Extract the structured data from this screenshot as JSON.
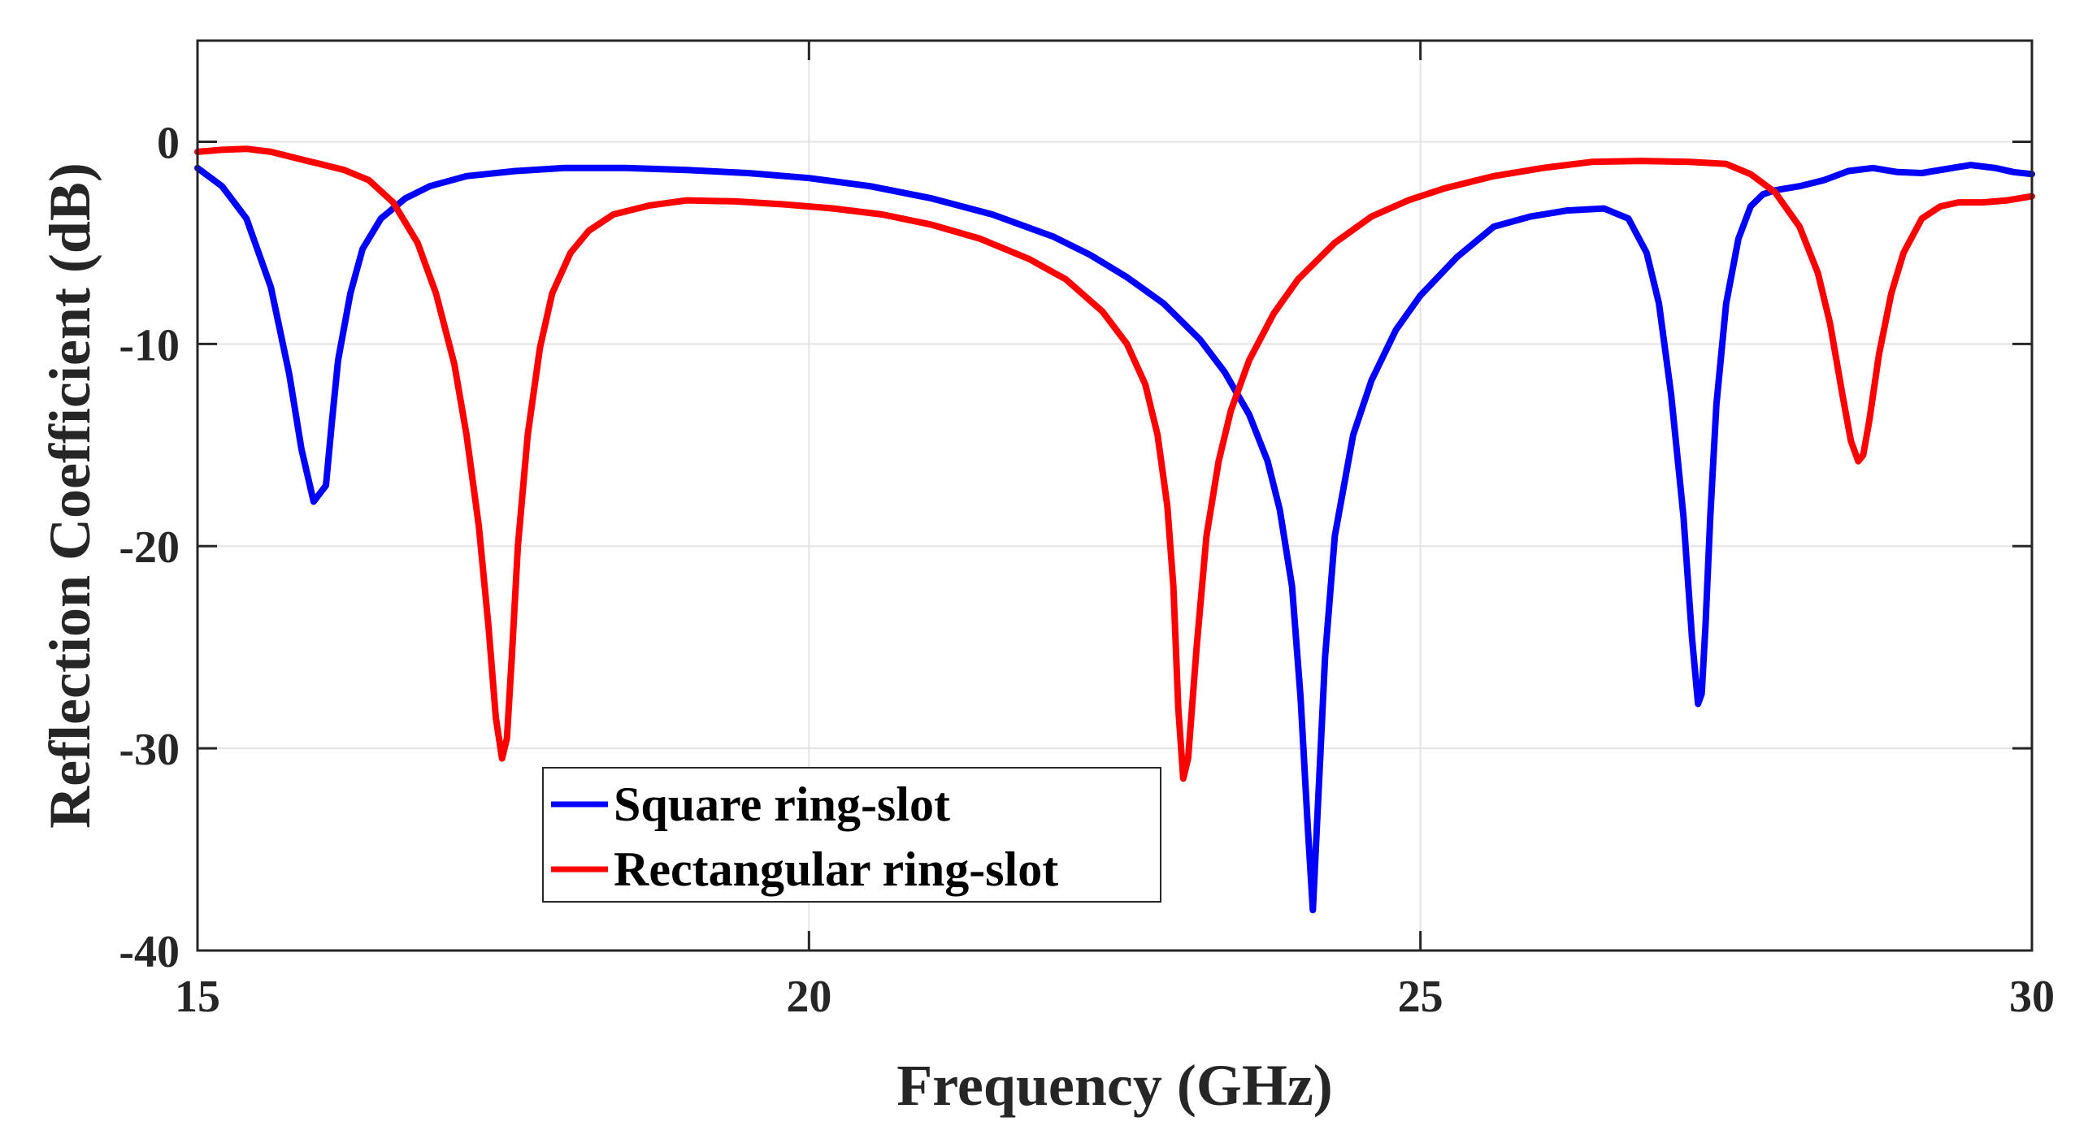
{
  "chart_data": {
    "type": "line",
    "title": "",
    "xlabel": "Frequency (GHz)",
    "ylabel": "Reflection Coefficient (dB)",
    "xlim": [
      15,
      30
    ],
    "ylim": [
      -40,
      5
    ],
    "xticks": [
      15,
      20,
      25,
      30
    ],
    "yticks": [
      0,
      -10,
      -20,
      -30,
      -40
    ],
    "xtick_labels": [
      "15",
      "20",
      "25",
      "30"
    ],
    "ytick_labels": [
      "0",
      "-10",
      "-20",
      "-30",
      "-40"
    ],
    "grid": true,
    "legend_position": "lower-left-center",
    "series": [
      {
        "name": "Square ring-slot",
        "color": "#0000ff",
        "x": [
          15.0,
          15.2,
          15.4,
          15.6,
          15.75,
          15.85,
          15.95,
          16.05,
          16.1,
          16.15,
          16.25,
          16.35,
          16.5,
          16.7,
          16.9,
          17.2,
          17.6,
          18.0,
          18.5,
          19.0,
          19.5,
          20.0,
          20.5,
          21.0,
          21.5,
          22.0,
          22.3,
          22.6,
          22.9,
          23.2,
          23.4,
          23.6,
          23.75,
          23.85,
          23.95,
          24.02,
          24.08,
          24.12,
          24.16,
          24.22,
          24.3,
          24.45,
          24.6,
          24.8,
          25.0,
          25.3,
          25.6,
          25.9,
          26.2,
          26.5,
          26.7,
          26.85,
          26.95,
          27.05,
          27.15,
          27.22,
          27.27,
          27.3,
          27.33,
          27.37,
          27.42,
          27.5,
          27.6,
          27.7,
          27.8,
          27.9,
          28.0,
          28.1,
          28.3,
          28.5,
          28.7,
          28.9,
          29.1,
          29.3,
          29.5,
          29.7,
          29.85,
          30.0
        ],
        "y": [
          -1.3,
          -2.2,
          -3.8,
          -7.2,
          -11.5,
          -15.2,
          -17.8,
          -17.0,
          -13.8,
          -10.8,
          -7.5,
          -5.3,
          -3.8,
          -2.8,
          -2.2,
          -1.7,
          -1.45,
          -1.3,
          -1.3,
          -1.4,
          -1.55,
          -1.8,
          -2.2,
          -2.8,
          -3.6,
          -4.7,
          -5.6,
          -6.7,
          -8.0,
          -9.8,
          -11.4,
          -13.5,
          -15.8,
          -18.2,
          -22.0,
          -27.5,
          -34.0,
          -38.0,
          -33.0,
          -25.5,
          -19.5,
          -14.5,
          -11.8,
          -9.3,
          -7.6,
          -5.7,
          -4.2,
          -3.7,
          -3.4,
          -3.3,
          -3.8,
          -5.5,
          -8.0,
          -12.5,
          -18.5,
          -24.5,
          -27.8,
          -27.3,
          -24.0,
          -18.5,
          -13.0,
          -8.0,
          -4.8,
          -3.2,
          -2.6,
          -2.4,
          -2.3,
          -2.2,
          -1.9,
          -1.45,
          -1.3,
          -1.5,
          -1.55,
          -1.35,
          -1.15,
          -1.3,
          -1.5,
          -1.6
        ]
      },
      {
        "name": "Rectangular ring-slot",
        "color": "#ff0000",
        "x": [
          15.0,
          15.2,
          15.4,
          15.6,
          15.8,
          16.0,
          16.2,
          16.4,
          16.6,
          16.8,
          16.95,
          17.1,
          17.2,
          17.3,
          17.38,
          17.44,
          17.49,
          17.53,
          17.57,
          17.62,
          17.7,
          17.8,
          17.9,
          18.05,
          18.2,
          18.4,
          18.7,
          19.0,
          19.4,
          19.8,
          20.2,
          20.6,
          21.0,
          21.4,
          21.8,
          22.1,
          22.4,
          22.6,
          22.75,
          22.85,
          22.93,
          22.98,
          23.02,
          23.06,
          23.1,
          23.17,
          23.25,
          23.35,
          23.45,
          23.6,
          23.8,
          24.0,
          24.3,
          24.6,
          24.9,
          25.2,
          25.6,
          26.0,
          26.4,
          26.8,
          27.2,
          27.5,
          27.7,
          27.9,
          28.1,
          28.25,
          28.35,
          28.45,
          28.52,
          28.58,
          28.62,
          28.67,
          28.75,
          28.85,
          28.95,
          29.1,
          29.25,
          29.4,
          29.6,
          29.8,
          30.0
        ],
        "y": [
          -0.5,
          -0.4,
          -0.35,
          -0.5,
          -0.8,
          -1.1,
          -1.4,
          -1.9,
          -3.0,
          -5.0,
          -7.5,
          -11.0,
          -14.5,
          -19.0,
          -24.0,
          -28.5,
          -30.5,
          -29.5,
          -25.5,
          -20.0,
          -14.5,
          -10.2,
          -7.5,
          -5.5,
          -4.4,
          -3.6,
          -3.15,
          -2.9,
          -2.95,
          -3.1,
          -3.3,
          -3.6,
          -4.1,
          -4.8,
          -5.8,
          -6.8,
          -8.4,
          -10.0,
          -12.0,
          -14.5,
          -18.0,
          -22.0,
          -28.0,
          -31.5,
          -30.5,
          -25.0,
          -19.5,
          -15.8,
          -13.3,
          -10.8,
          -8.5,
          -6.8,
          -5.0,
          -3.7,
          -2.9,
          -2.3,
          -1.7,
          -1.3,
          -1.0,
          -0.95,
          -1.0,
          -1.1,
          -1.6,
          -2.5,
          -4.2,
          -6.5,
          -9.0,
          -12.5,
          -14.8,
          -15.8,
          -15.5,
          -13.8,
          -10.5,
          -7.5,
          -5.5,
          -3.8,
          -3.2,
          -3.0,
          -3.0,
          -2.9,
          -2.7
        ]
      }
    ]
  }
}
